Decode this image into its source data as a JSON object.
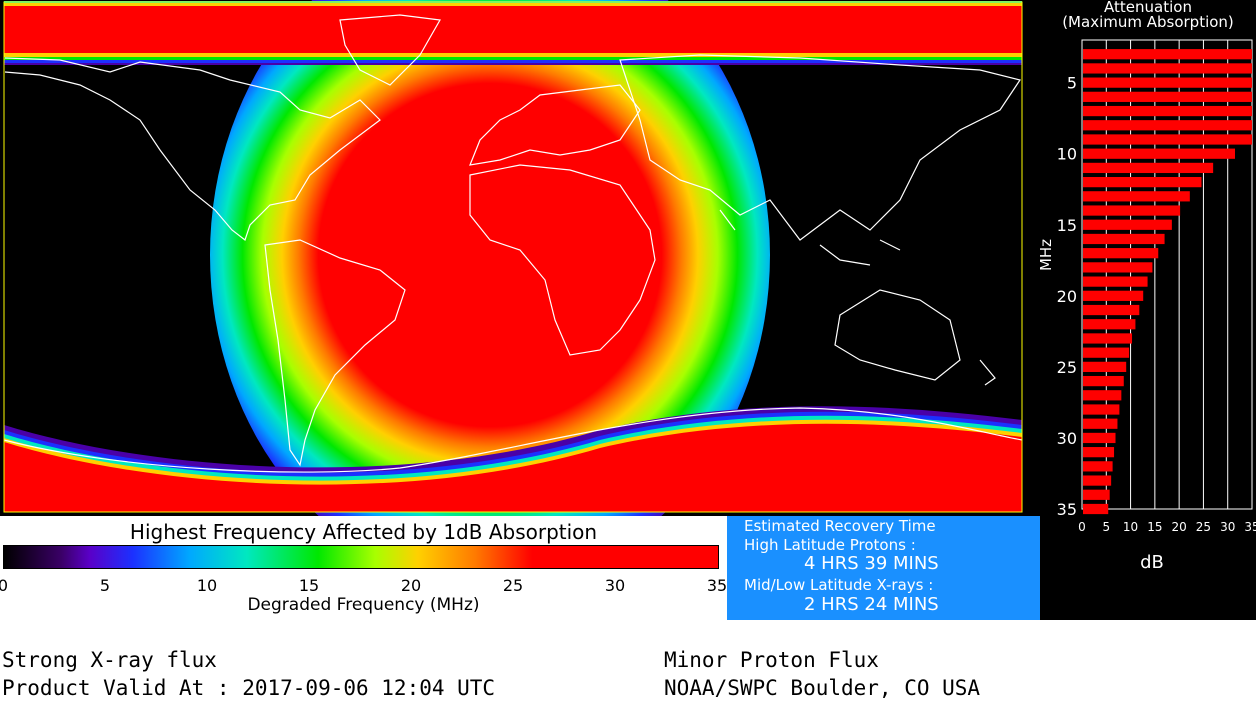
{
  "map": {
    "colors": {
      "high": "#ff0000",
      "background": "#000000",
      "coastline": "#ffffff"
    }
  },
  "colorbar": {
    "title": "Highest Frequency Affected by 1dB Absorption",
    "ticks": [
      "0",
      "5",
      "10",
      "15",
      "20",
      "25",
      "30",
      "35"
    ],
    "xlabel": "Degraded Frequency (MHz)",
    "range": [
      0,
      35
    ]
  },
  "recovery": {
    "title": "Estimated Recovery Time",
    "hl_label": "High Latitude Protons :",
    "hl_value": "4 HRS 39 MINS",
    "ml_label": "Mid/Low Latitude X-rays :",
    "ml_value": "2 HRS 24 MINS",
    "bg_color": "#1a90ff"
  },
  "attenuation": {
    "title1": "Attenuation",
    "title2": "(Maximum Absorption)",
    "y_label": "MHz",
    "x_label": "dB",
    "x_ticks": [
      "0",
      "5",
      "10",
      "15",
      "20",
      "25",
      "30",
      "35"
    ],
    "y_ticks": [
      "5",
      "10",
      "15",
      "20",
      "25",
      "30",
      "35"
    ],
    "bar_color": "#ff0000"
  },
  "chart_data": {
    "type": "bar",
    "title": "Attenuation (Maximum Absorption)",
    "xlabel": "dB",
    "ylabel": "MHz",
    "xlim": [
      0,
      35
    ],
    "ylim": [
      2,
      35
    ],
    "categories": [
      3,
      4,
      5,
      6,
      7,
      8,
      9,
      10,
      11,
      12,
      13,
      14,
      15,
      16,
      17,
      18,
      19,
      20,
      21,
      22,
      23,
      24,
      25,
      26,
      27,
      28,
      29,
      30,
      31,
      32,
      33,
      34,
      35
    ],
    "values": [
      35,
      35,
      35,
      35,
      35,
      35,
      35,
      31.5,
      27,
      24.6,
      22.2,
      20.2,
      18.5,
      17,
      15.7,
      14.5,
      13.5,
      12.6,
      11.8,
      11,
      10.3,
      9.7,
      9.1,
      8.6,
      8.1,
      7.7,
      7.3,
      6.9,
      6.6,
      6.3,
      6,
      5.7,
      5.4
    ]
  },
  "footer": {
    "left1": "Strong X-ray flux",
    "left2": "Product Valid At : 2017-09-06 12:04 UTC",
    "right1": "Minor Proton Flux",
    "right2": "NOAA/SWPC Boulder, CO USA"
  }
}
